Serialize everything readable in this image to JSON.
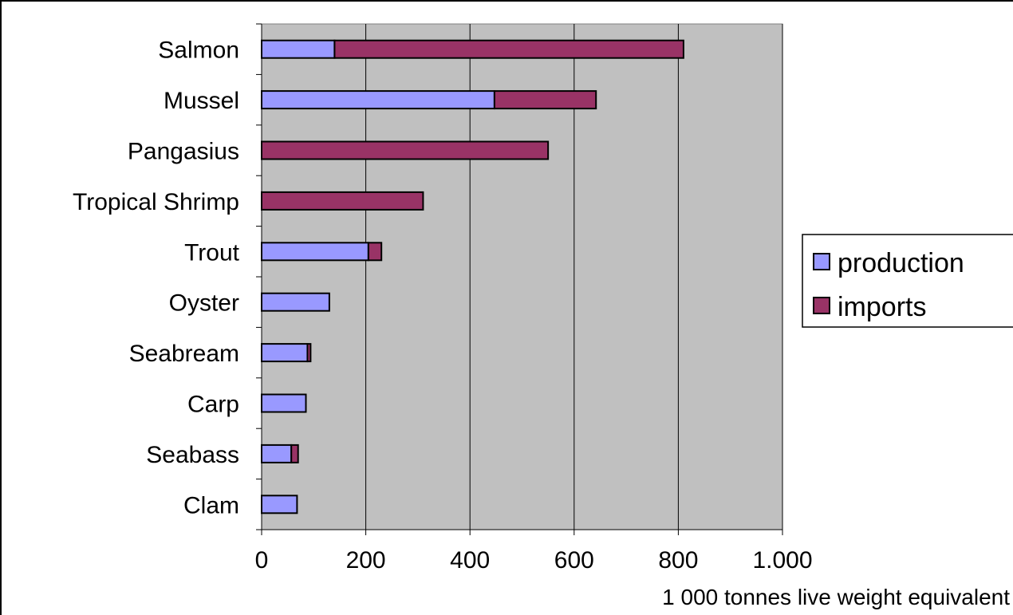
{
  "chart_data": {
    "type": "bar",
    "orientation": "horizontal",
    "stacked": true,
    "categories": [
      "Salmon",
      "Mussel",
      "Pangasius",
      "Tropical Shrimp",
      "Trout",
      "Oyster",
      "Seabream",
      "Carp",
      "Seabass",
      "Clam"
    ],
    "series": [
      {
        "name": "production",
        "color": "#9999ff",
        "values": [
          140,
          447,
          0,
          0,
          205,
          130,
          88,
          85,
          57,
          68
        ]
      },
      {
        "name": "imports",
        "color": "#993366",
        "values": [
          670,
          195,
          550,
          310,
          25,
          0,
          6,
          0,
          13,
          0
        ]
      }
    ],
    "x_ticks": [
      "0",
      "200",
      "400",
      "600",
      "800",
      "1.000"
    ],
    "xlim": [
      0,
      1000
    ],
    "xlabel": "1 000 tonnes live weight equivalent",
    "ylabel": "",
    "title": "",
    "grid": true,
    "plot_background": "#c0c0c0",
    "legend_position": "right"
  }
}
